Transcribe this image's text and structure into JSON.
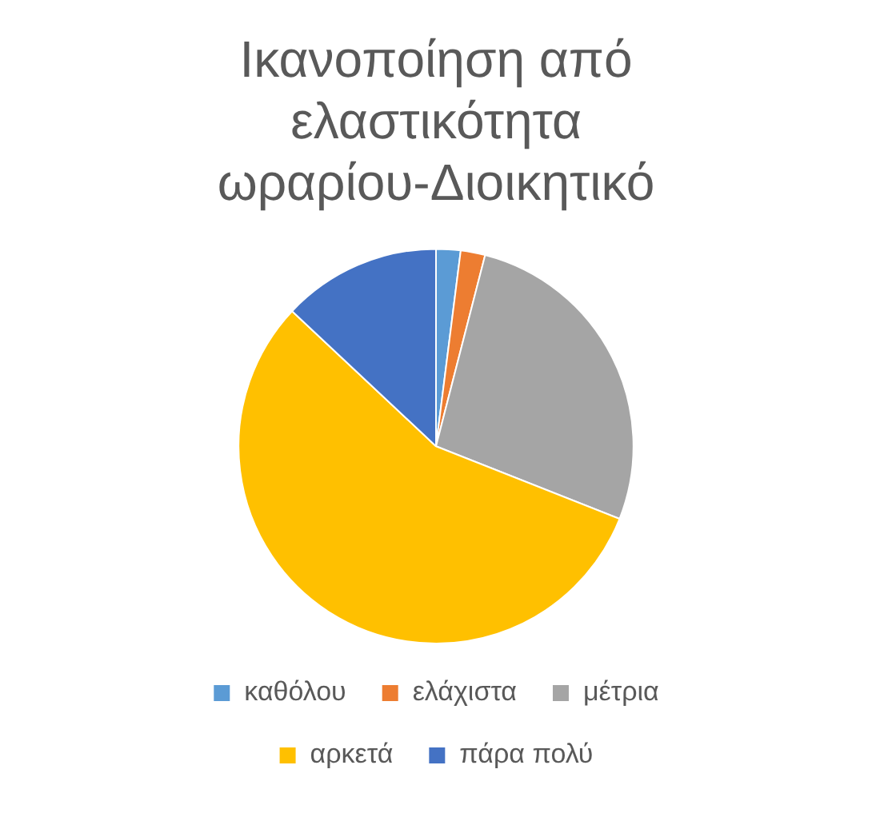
{
  "chart_data": {
    "type": "pie",
    "title": "Ικανοποίηση από ελαστικότητα ωραρίου-Διοικητικό",
    "categories": [
      "καθόλου",
      "ελάχιστα",
      "μέτρια",
      "αρκετά",
      "πάρα πολύ"
    ],
    "values": [
      2,
      2,
      27,
      56,
      13
    ],
    "colors": [
      "#5b9bd5",
      "#ed7d31",
      "#a5a5a5",
      "#ffc000",
      "#4472c4"
    ],
    "legend": "bottom"
  }
}
